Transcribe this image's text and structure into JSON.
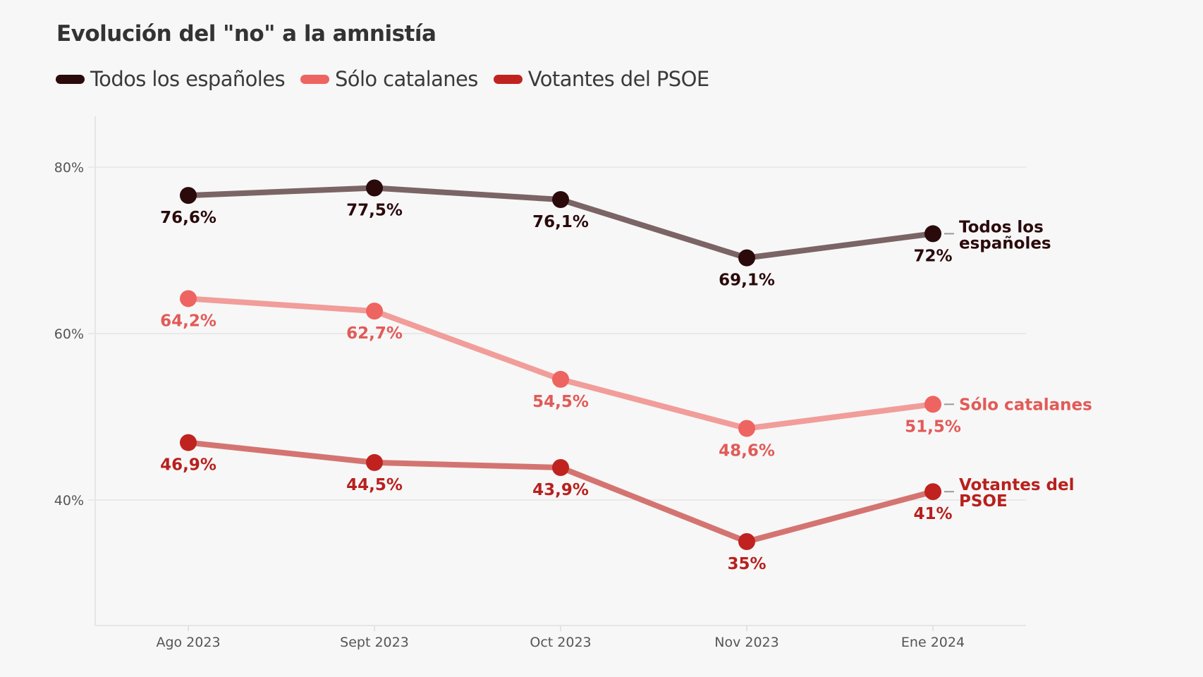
{
  "chart_data": {
    "type": "line",
    "title": "Evolución del \"no\" a la amnistía",
    "xlabel": "",
    "ylabel": "",
    "categories": [
      "Ago 2023",
      "Sept 2023",
      "Oct 2023",
      "Nov 2023",
      "Ene 2024"
    ],
    "yticks": [
      40,
      60,
      80
    ],
    "ytick_labels": [
      "40%",
      "60%",
      "80%"
    ],
    "ylim": [
      22,
      86
    ],
    "grid": "horizontal",
    "legend_position": "top-left",
    "series": [
      {
        "name": "Todos los españoles",
        "end_label": [
          "Todos los",
          "españoles"
        ],
        "values": [
          76.6,
          77.5,
          76.1,
          69.1,
          72
        ],
        "labels": [
          "76,6%",
          "77,5%",
          "76,1%",
          "69,1%",
          "72%"
        ],
        "dot_color": "#2b0a0b",
        "line_color": "#7b6466",
        "label_color": "#2b0a0b"
      },
      {
        "name": "Sólo catalanes",
        "end_label": [
          "Sólo catalanes"
        ],
        "values": [
          64.2,
          62.7,
          54.5,
          48.6,
          51.5
        ],
        "labels": [
          "64,2%",
          "62,7%",
          "54,5%",
          "48,6%",
          "51,5%"
        ],
        "dot_color": "#ee6460",
        "line_color": "#f19d9a",
        "label_color": "#e25a57"
      },
      {
        "name": "Votantes del PSOE",
        "end_label": [
          "Votantes del",
          "PSOE"
        ],
        "values": [
          46.9,
          44.5,
          43.9,
          35,
          41
        ],
        "labels": [
          "46,9%",
          "44,5%",
          "43,9%",
          "35%",
          "41%"
        ],
        "dot_color": "#c0231f",
        "line_color": "#d47471",
        "label_color": "#b8201d"
      }
    ]
  }
}
